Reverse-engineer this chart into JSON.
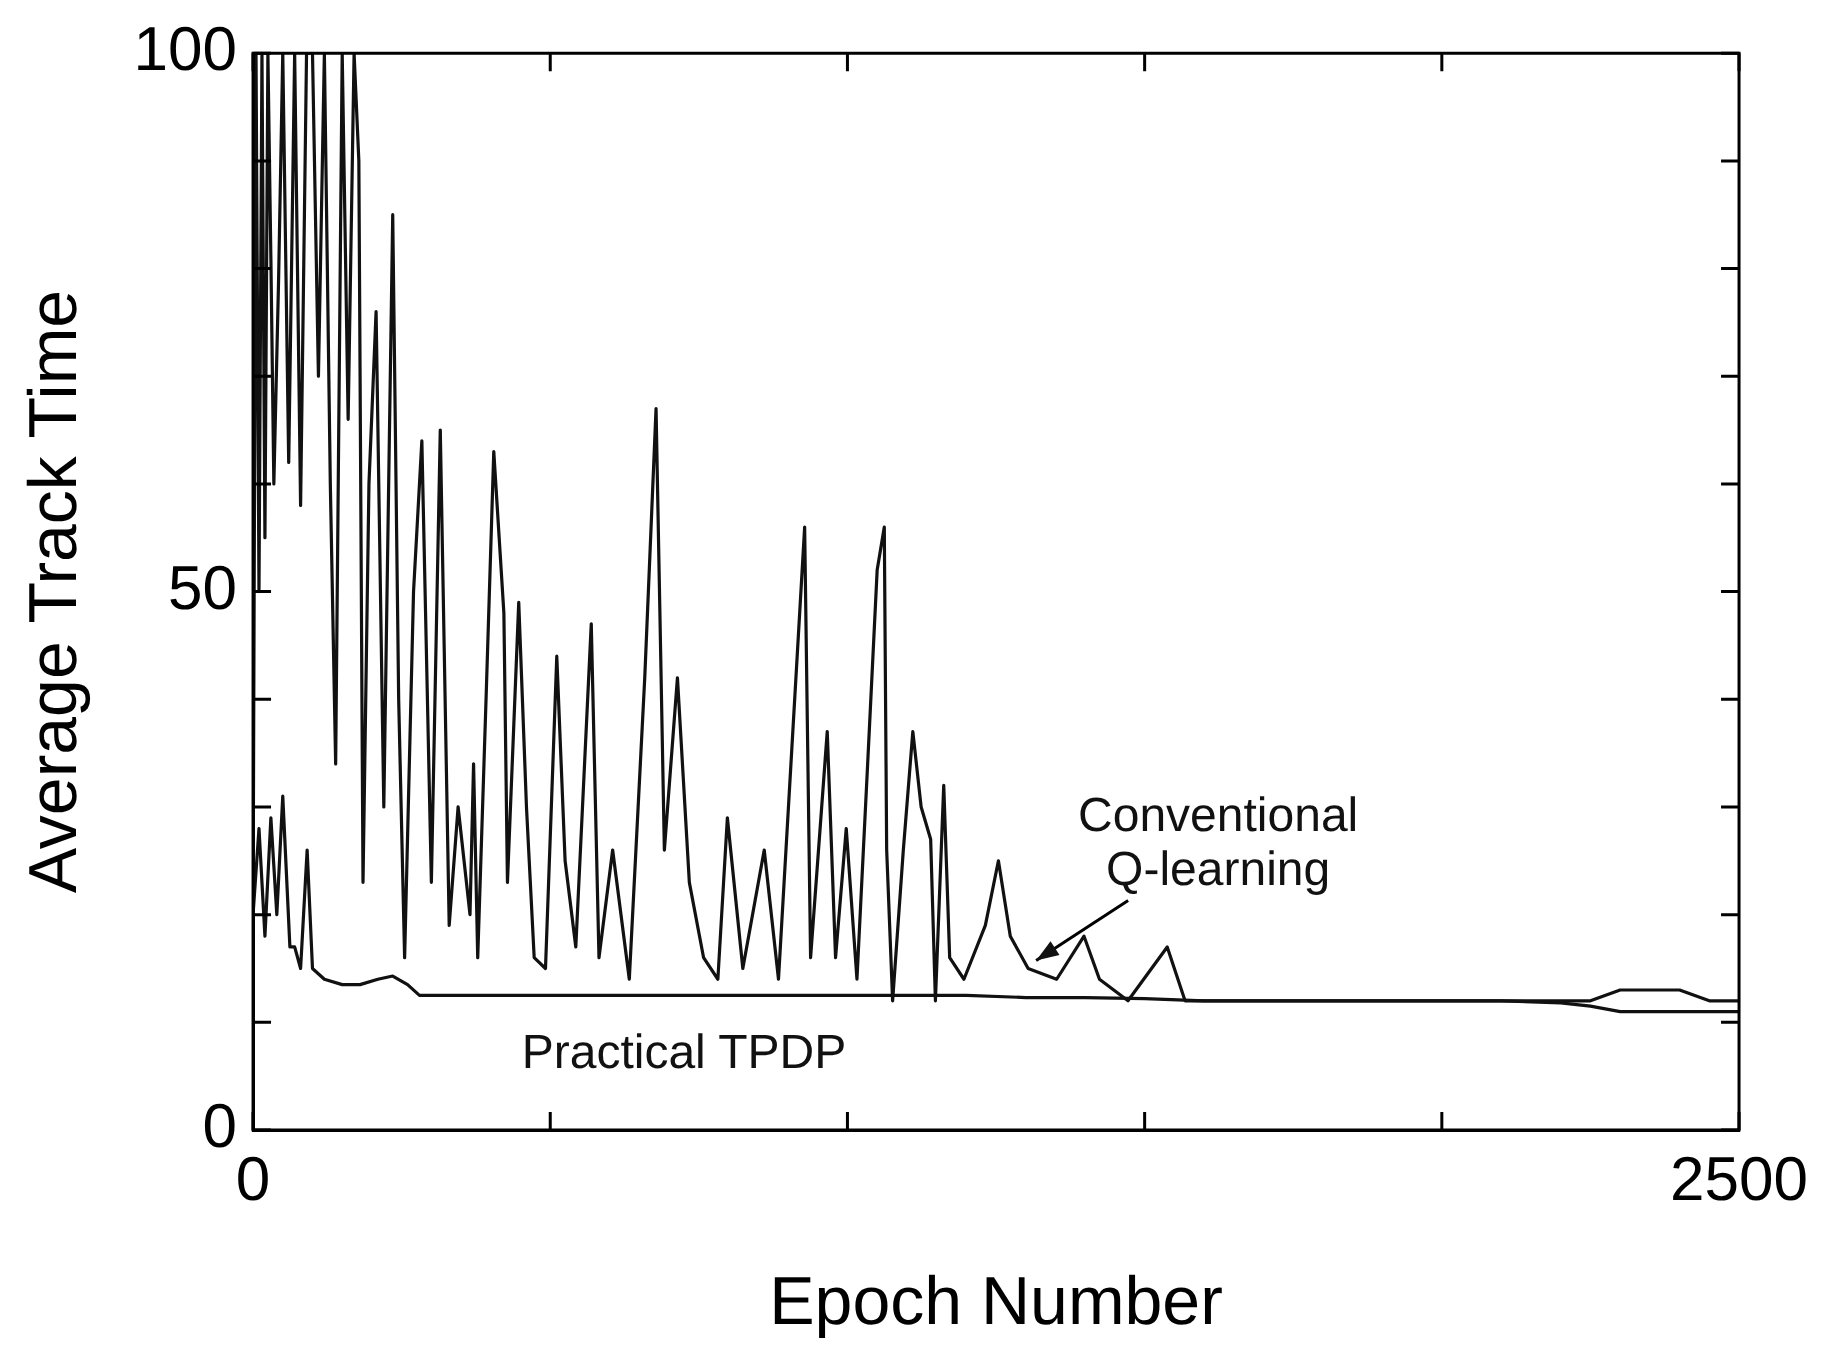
{
  "chart_data": {
    "type": "line",
    "xlabel": "Epoch Number",
    "ylabel": "Average Track Time",
    "xlim": [
      0,
      2500
    ],
    "ylim": [
      0,
      100
    ],
    "xticks": [
      0,
      {
        "value": 500,
        "label": null
      },
      {
        "value": 1000,
        "label": null
      },
      {
        "value": 1500,
        "label": null
      },
      {
        "value": 2000,
        "label": null
      },
      2500
    ],
    "yticks": [
      0,
      {
        "value": 10,
        "label": null
      },
      {
        "value": 20,
        "label": null
      },
      {
        "value": 30,
        "label": null
      },
      {
        "value": 40,
        "label": null
      },
      50,
      {
        "value": 60,
        "label": null
      },
      {
        "value": 70,
        "label": null
      },
      {
        "value": 80,
        "label": null
      },
      {
        "value": 90,
        "label": null
      },
      100
    ],
    "grid": false,
    "legend": false,
    "marker": "none",
    "line_style": "solid",
    "series": [
      {
        "name": "Conventional Q-learning",
        "color": "#111111",
        "x": [
          0,
          5,
          10,
          15,
          20,
          25,
          30,
          35,
          43,
          50,
          60,
          70,
          80,
          90,
          100,
          110,
          120,
          130,
          139,
          150,
          160,
          170,
          178,
          185,
          195,
          207,
          220,
          235,
          245,
          255,
          270,
          284,
          300,
          315,
          330,
          345,
          365,
          371,
          378,
          392,
          405,
          422,
          428,
          447,
          460,
          473,
          492,
          511,
          525,
          543,
          569,
          582,
          605,
          633,
          659,
          678,
          692,
          714,
          734,
          758,
          782,
          798,
          824,
          860,
          884,
          928,
          938,
          966,
          980,
          998,
          1016,
          1034,
          1050,
          1062,
          1066,
          1076,
          1094,
          1110,
          1124,
          1140,
          1148,
          1162,
          1172,
          1196,
          1232,
          1254,
          1274,
          1304,
          1352,
          1398,
          1424,
          1472,
          1538,
          1568,
          1616,
          1700,
          1800,
          1900,
          2000,
          2100,
          2200,
          2250,
          2300,
          2350,
          2400,
          2450,
          2500
        ],
        "values": [
          20,
          100,
          50,
          100,
          55,
          100,
          81,
          60,
          79,
          100,
          62,
          100,
          58,
          100,
          100,
          70,
          100,
          60,
          34,
          100,
          66,
          100,
          90,
          23,
          60,
          76,
          30,
          85,
          40,
          16,
          50,
          64,
          23,
          65,
          19,
          30,
          20,
          34,
          16,
          40,
          63,
          48,
          23,
          49,
          30,
          16,
          15,
          44,
          25,
          17,
          47,
          16,
          26,
          14,
          42,
          67,
          26,
          42,
          23,
          16,
          14,
          29,
          15,
          26,
          14,
          56,
          16,
          37,
          16,
          28,
          14,
          34,
          52,
          56,
          26,
          12,
          26,
          37,
          30,
          27,
          12,
          32,
          16,
          14,
          19,
          25,
          18,
          15,
          14,
          18,
          14,
          12,
          17,
          12,
          12,
          12,
          12,
          12,
          12,
          12,
          12,
          12,
          13,
          13,
          13,
          12,
          12
        ]
      },
      {
        "name": "Practical TPDP",
        "color": "#111111",
        "x": [
          0,
          10,
          20,
          30,
          40,
          50,
          62,
          70,
          80,
          91,
          100,
          120,
          150,
          180,
          210,
          235,
          260,
          280,
          320,
          400,
          500,
          600,
          700,
          800,
          900,
          1000,
          1100,
          1200,
          1300,
          1400,
          1500,
          1600,
          1700,
          1800,
          1900,
          2000,
          2100,
          2200,
          2250,
          2300,
          2350,
          2400,
          2450,
          2500
        ],
        "values": [
          20,
          28,
          18,
          29,
          20,
          31,
          17,
          17,
          15,
          26,
          15,
          14,
          13.5,
          13.5,
          14,
          14.3,
          13.5,
          12.5,
          12.5,
          12.5,
          12.5,
          12.5,
          12.5,
          12.5,
          12.5,
          12.5,
          12.5,
          12.5,
          12.3,
          12.3,
          12.2,
          12,
          12,
          12,
          12,
          12,
          12,
          11.8,
          11.5,
          11,
          11,
          11,
          11,
          11
        ]
      }
    ]
  }
}
